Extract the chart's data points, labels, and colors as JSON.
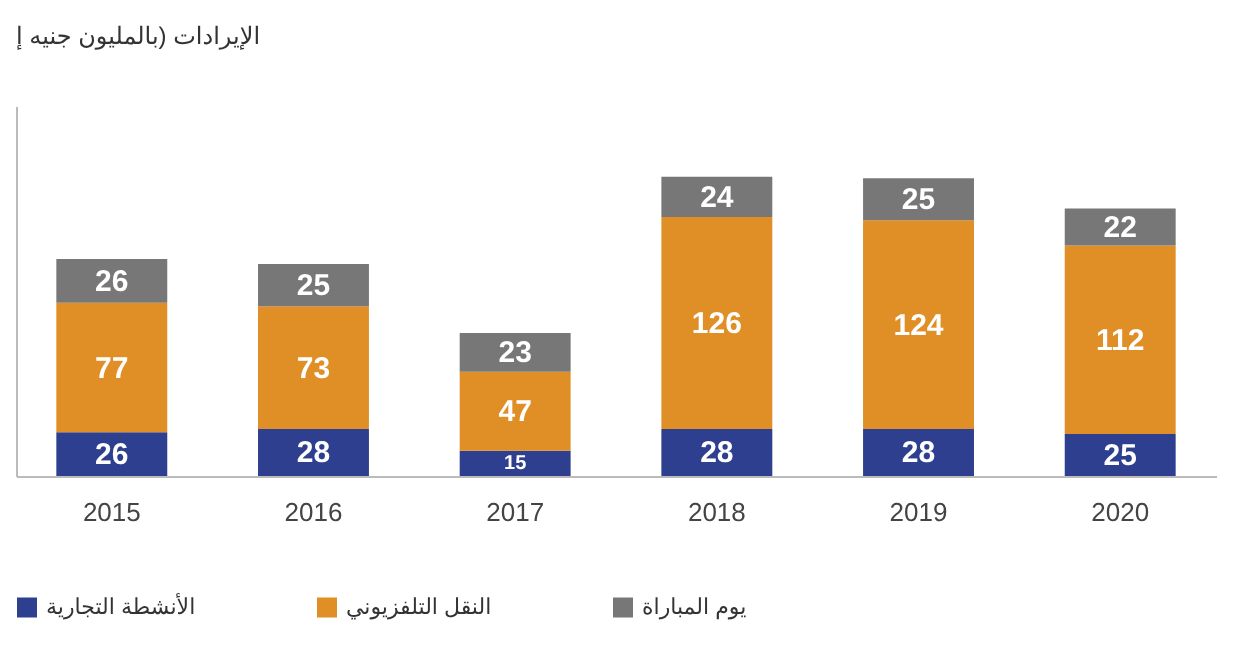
{
  "chart_data": {
    "type": "bar",
    "stacked": true,
    "title": "الإيرادات (بالمليون جنيه إ",
    "categories": [
      "2015",
      "2016",
      "2017",
      "2018",
      "2019",
      "2020"
    ],
    "series": [
      {
        "name": "الأنشطة التجارية",
        "color": "#2e3f8f",
        "values": [
          26,
          28,
          15,
          28,
          28,
          25
        ]
      },
      {
        "name": "النقل التلفزيوني",
        "color": "#e08e26",
        "values": [
          77,
          73,
          47,
          126,
          124,
          112
        ]
      },
      {
        "name": "يوم المباراة",
        "color": "#777777",
        "values": [
          26,
          25,
          23,
          24,
          25,
          22
        ]
      }
    ],
    "ylim": [
      0,
      220
    ],
    "tick_labels": "x",
    "data_labels": true,
    "legend": "bottom",
    "grid": false
  }
}
